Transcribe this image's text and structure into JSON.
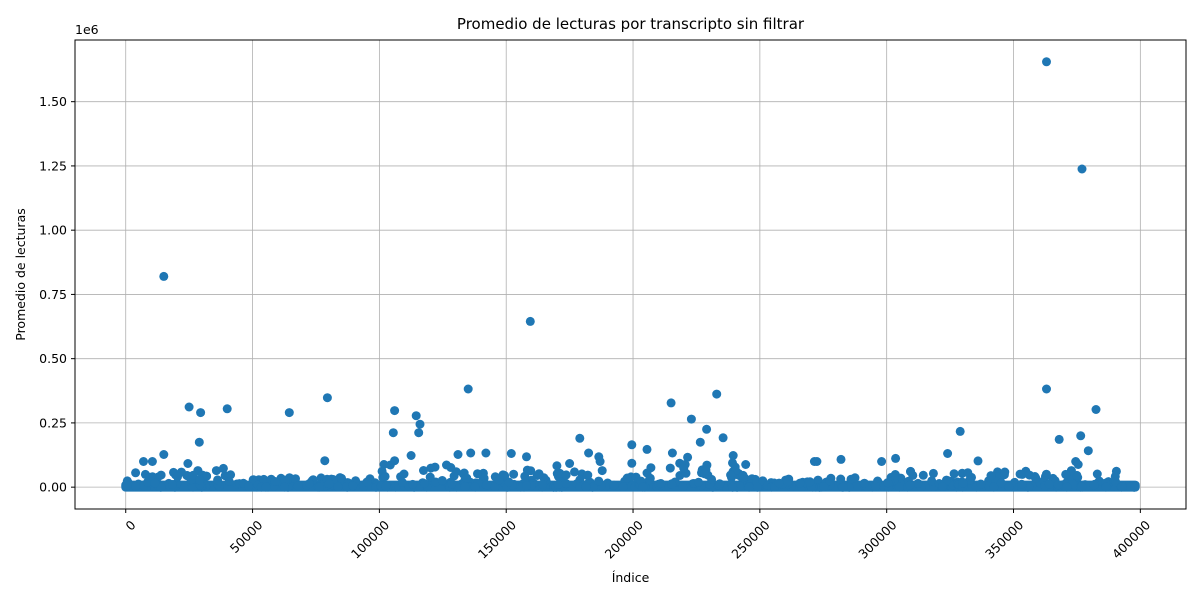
{
  "chart_data": {
    "type": "scatter",
    "title": "Promedio de lecturas por transcripto sin filtrar",
    "xlabel": "Índice",
    "ylabel": "Promedio de lecturas",
    "y_scale_factor_label": "1e6",
    "xlim": [
      -20000,
      418000
    ],
    "ylim": [
      -85000,
      1740000
    ],
    "x_ticks": [
      0,
      50000,
      100000,
      150000,
      200000,
      250000,
      300000,
      350000,
      400000
    ],
    "x_tick_labels": [
      "0",
      "50000",
      "100000",
      "150000",
      "200000",
      "250000",
      "300000",
      "350000",
      "400000"
    ],
    "y_ticks": [
      0,
      250000,
      500000,
      750000,
      1000000,
      1250000,
      1500000
    ],
    "y_tick_labels": [
      "0.00",
      "0.25",
      "0.50",
      "0.75",
      "1.00",
      "1.25",
      "1.50"
    ],
    "grid": true,
    "marker_color": "#1f77b4",
    "x_range": [
      0,
      398000
    ],
    "outliers": [
      [
        15000,
        820000
      ],
      [
        25000,
        312000
      ],
      [
        29500,
        290000
      ],
      [
        29000,
        175000
      ],
      [
        40000,
        305000
      ],
      [
        64500,
        290000
      ],
      [
        79500,
        348000
      ],
      [
        106000,
        298000
      ],
      [
        105500,
        212000
      ],
      [
        114500,
        278000
      ],
      [
        116000,
        245000
      ],
      [
        115500,
        212000
      ],
      [
        135000,
        382000
      ],
      [
        159500,
        645000
      ],
      [
        215000,
        328000
      ],
      [
        223000,
        265000
      ],
      [
        229000,
        225000
      ],
      [
        233000,
        362000
      ],
      [
        235500,
        192000
      ],
      [
        226500,
        175000
      ],
      [
        179000,
        190000
      ],
      [
        199500,
        165000
      ],
      [
        205500,
        147000
      ],
      [
        363000,
        1655000
      ],
      [
        377000,
        1238000
      ],
      [
        363000,
        382000
      ],
      [
        382500,
        302000
      ],
      [
        329000,
        217000
      ],
      [
        376500,
        200000
      ],
      [
        368000,
        186000
      ],
      [
        379500,
        142000
      ],
      [
        7000,
        100000
      ],
      [
        10500,
        100000
      ],
      [
        15000,
        127000
      ],
      [
        24500,
        92000
      ],
      [
        38500,
        73000
      ],
      [
        78500,
        103000
      ],
      [
        106000,
        103000
      ],
      [
        112500,
        123000
      ],
      [
        131000,
        127000
      ],
      [
        136000,
        133000
      ],
      [
        142000,
        133000
      ],
      [
        152000,
        131000
      ],
      [
        158000,
        118000
      ],
      [
        175000,
        92000
      ],
      [
        182500,
        133000
      ],
      [
        186500,
        118000
      ],
      [
        215500,
        133000
      ],
      [
        221500,
        116000
      ],
      [
        239500,
        123000
      ],
      [
        272500,
        100000
      ],
      [
        282000,
        108000
      ],
      [
        298000,
        100000
      ],
      [
        303500,
        112000
      ],
      [
        324000,
        131000
      ],
      [
        336000,
        102000
      ],
      [
        374500,
        100000
      ],
      [
        375500,
        88000
      ],
      [
        271500,
        100000
      ],
      [
        170000,
        83000
      ],
      [
        187000,
        100000
      ],
      [
        199500,
        93000
      ]
    ],
    "bands": [
      {
        "range": [
          0,
          45000
        ],
        "max": 65000
      },
      {
        "range": [
          45000,
          100000
        ],
        "max": 38000
      },
      {
        "range": [
          100000,
          142000
        ],
        "max": 90000
      },
      {
        "range": [
          142000,
          192000
        ],
        "max": 70000
      },
      {
        "range": [
          192000,
          245000
        ],
        "max": 95000
      },
      {
        "range": [
          245000,
          300000
        ],
        "max": 40000
      },
      {
        "range": [
          300000,
          345000
        ],
        "max": 65000
      },
      {
        "range": [
          345000,
          392000
        ],
        "max": 70000
      },
      {
        "range": [
          392000,
          398000
        ],
        "max": 6000
      }
    ]
  }
}
